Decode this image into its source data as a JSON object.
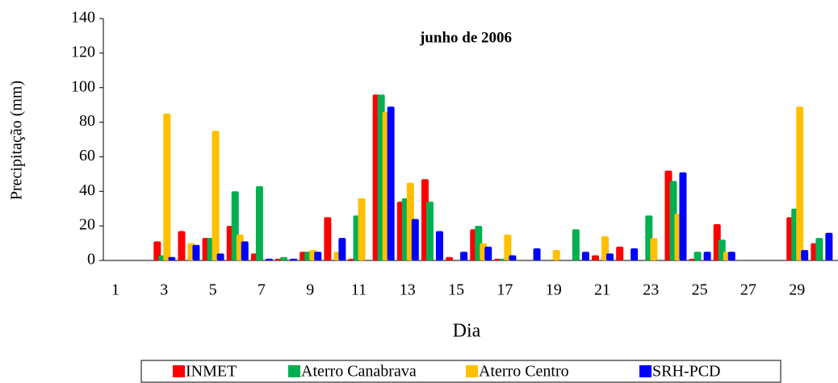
{
  "chart_data": {
    "type": "bar",
    "title": "junho de 2006",
    "x_label": "Dia",
    "y_label": "Precipitação  (mm)",
    "categories": [
      1,
      null,
      3,
      null,
      5,
      null,
      7,
      null,
      9,
      null,
      11,
      null,
      13,
      null,
      15,
      null,
      17,
      null,
      19,
      null,
      21,
      null,
      23,
      null,
      25,
      null,
      27,
      null,
      29,
      null
    ],
    "series": [
      {
        "name": "INMET",
        "color": "#ff0000",
        "values": [
          0,
          0,
          11,
          17,
          13,
          20,
          4,
          1,
          5,
          25,
          1,
          96,
          34,
          47,
          2,
          18,
          1,
          0,
          0,
          0,
          3,
          8,
          0,
          52,
          1,
          21,
          0,
          0,
          25,
          10
        ]
      },
      {
        "name": "Aterro Canabrava",
        "color": "#00b050",
        "values": [
          0,
          0,
          3,
          0,
          13,
          40,
          43,
          2,
          5,
          0,
          26,
          96,
          36,
          34,
          0,
          20,
          1,
          0,
          0,
          18,
          0,
          0,
          26,
          46,
          5,
          12,
          0,
          0,
          30,
          13
        ]
      },
      {
        "name": "Aterro Centro",
        "color": "#ffc000",
        "values": [
          0,
          0,
          85,
          10,
          75,
          15,
          0,
          0,
          6,
          5,
          36,
          86,
          45,
          0,
          0,
          10,
          15,
          0,
          6,
          0,
          14,
          0,
          13,
          27,
          0,
          5,
          0,
          0,
          89,
          0
        ]
      },
      {
        "name": "SRH-PCD",
        "color": "#0000ff",
        "values": [
          0,
          0,
          2,
          9,
          4,
          11,
          1,
          1,
          5,
          13,
          0,
          89,
          24,
          17,
          5,
          8,
          3,
          7,
          0,
          5,
          4,
          7,
          0,
          51,
          5,
          5,
          0,
          0,
          6,
          16
        ]
      }
    ],
    "ylim": [
      0,
      140
    ],
    "yticks": [
      0,
      20,
      40,
      60,
      80,
      100,
      120,
      140
    ],
    "grid": false,
    "legend": "bottom"
  }
}
